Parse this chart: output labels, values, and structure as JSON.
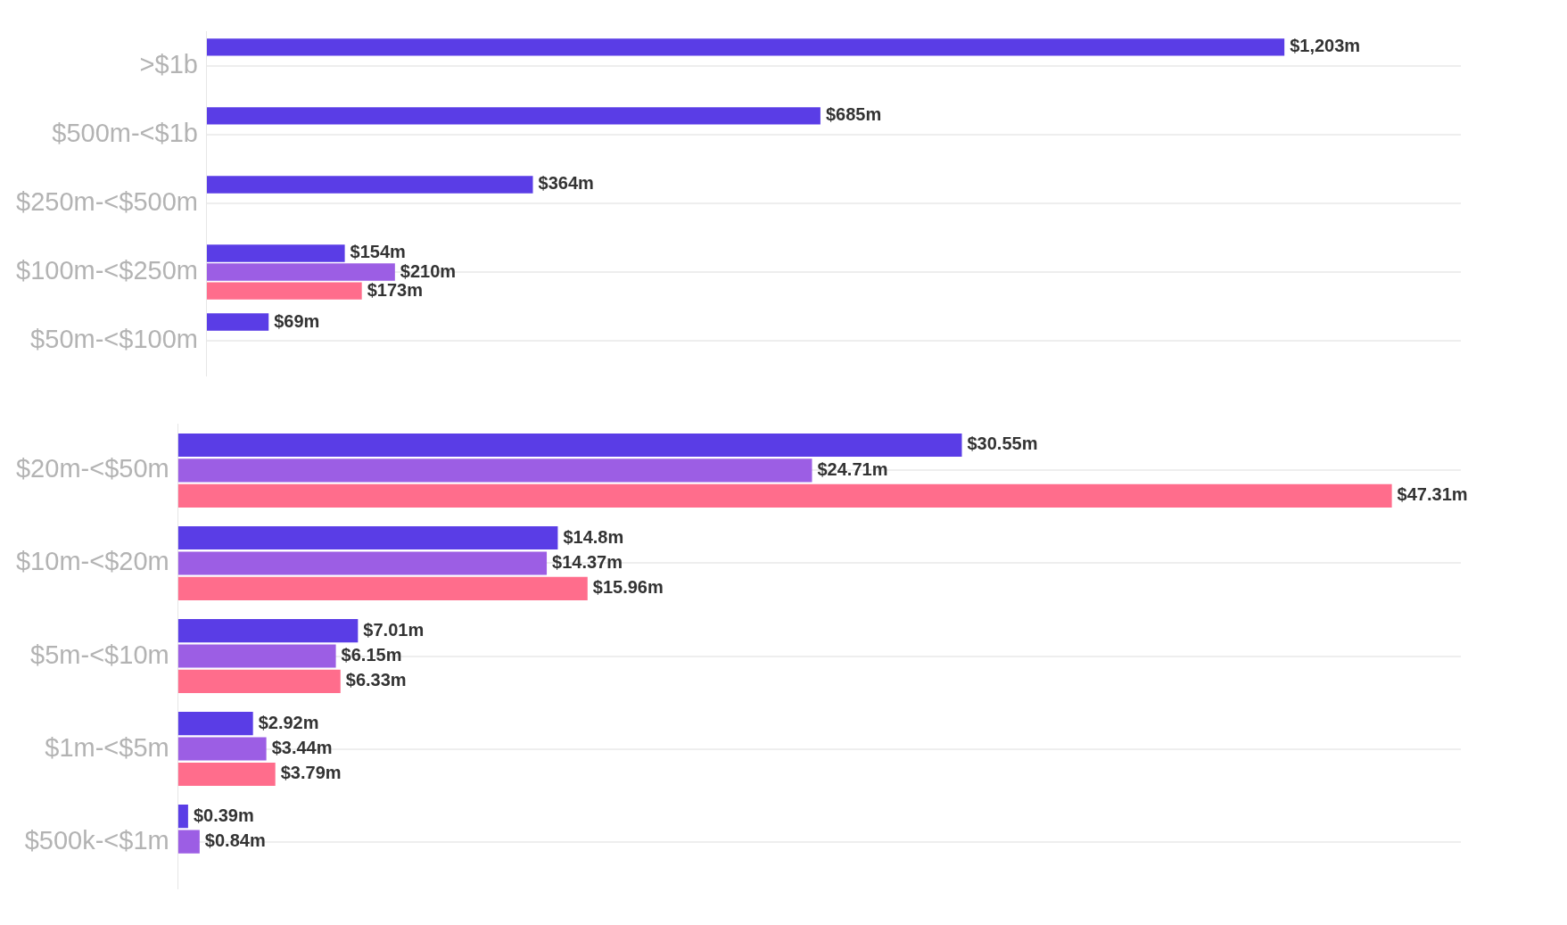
{
  "chart_data": [
    {
      "type": "bar",
      "orientation": "horizontal",
      "categories": [
        ">$1b",
        "$500m-<$1b",
        "$250m-<$500m",
        "$100m-<$250m",
        "$50m-<$100m"
      ],
      "grid": "y",
      "tick_labels": "y",
      "series": [
        {
          "color": "#5a3de6",
          "values": [
            1203,
            685,
            364,
            154,
            69
          ],
          "value_labels": [
            "$1,203m",
            "$685m",
            "$364m",
            "$154m",
            "$69m"
          ]
        },
        {
          "color": "#9c5ee4",
          "values": [
            null,
            null,
            null,
            210,
            null
          ],
          "value_labels": [
            null,
            null,
            null,
            "$210m",
            null
          ]
        },
        {
          "color": "#ff6d8c",
          "values": [
            null,
            null,
            null,
            173,
            null
          ],
          "value_labels": [
            null,
            null,
            null,
            "$173m",
            null
          ]
        }
      ]
    },
    {
      "type": "bar",
      "orientation": "horizontal",
      "categories": [
        "$20m-<$50m",
        "$10m-<$20m",
        "$5m-<$10m",
        "$1m-<$5m",
        "$500k-<$1m"
      ],
      "grid": "y",
      "tick_labels": "y",
      "series": [
        {
          "color": "#5a3de6",
          "values": [
            30.55,
            14.8,
            7.01,
            2.92,
            0.39
          ],
          "value_labels": [
            "$30.55m",
            "$14.8m",
            "$7.01m",
            "$2.92m",
            "$0.39m"
          ]
        },
        {
          "color": "#9c5ee4",
          "values": [
            24.71,
            14.37,
            6.15,
            3.44,
            0.84
          ],
          "value_labels": [
            "$24.71m",
            "$14.37m",
            "$6.15m",
            "$3.44m",
            "$0.84m"
          ]
        },
        {
          "color": "#ff6d8c",
          "values": [
            47.31,
            15.96,
            6.33,
            3.79,
            null
          ],
          "value_labels": [
            "$47.31m",
            "$15.96m",
            "$6.33m",
            "$3.79m",
            null
          ]
        }
      ]
    }
  ]
}
